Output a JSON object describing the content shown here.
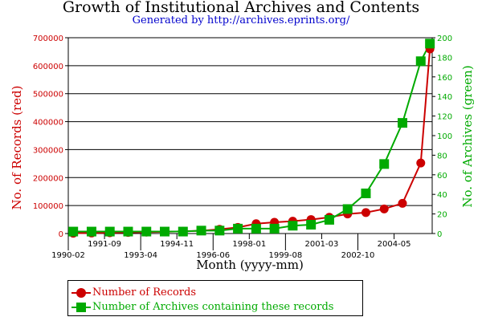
{
  "chart_data": {
    "type": "line",
    "title": "Growth of Institutional Archives and Contents",
    "subtitle": "Generated by http://archives.eprints.org/",
    "xlabel": "Month (yyyy-mm)",
    "x_ticks": [
      "1990-02",
      "1991-09",
      "1993-04",
      "1994-11",
      "1996-06",
      "1998-01",
      "1999-08",
      "2001-03",
      "2002-10",
      "2004-05"
    ],
    "x_tick_values": [
      1990.083,
      1991.667,
      1993.25,
      1994.833,
      1996.417,
      1998.0,
      1999.583,
      2001.167,
      2002.75,
      2004.333
    ],
    "xlim": [
      1990.083,
      2006.0
    ],
    "y_left": {
      "label": "No. of Records (red)",
      "ticks": [
        "0",
        "100000",
        "200000",
        "300000",
        "400000",
        "500000",
        "600000",
        "700000"
      ],
      "tick_values": [
        0,
        100000,
        200000,
        300000,
        400000,
        500000,
        600000,
        700000
      ],
      "lim": [
        0,
        700000
      ]
    },
    "y_right": {
      "label": "No. of Archives (green)",
      "ticks": [
        "0",
        "20",
        "40",
        "60",
        "80",
        "100",
        "120",
        "140",
        "160",
        "180",
        "200"
      ],
      "tick_values": [
        0,
        20,
        40,
        60,
        80,
        100,
        120,
        140,
        160,
        180,
        200
      ],
      "lim": [
        0,
        200
      ]
    },
    "grid": true,
    "legend_position": "bottom",
    "series": [
      {
        "name": "Number of Records",
        "axis": "left",
        "color": "#cc0000",
        "marker": "circle",
        "x": [
          1990.3,
          1991.1,
          1991.9,
          1992.7,
          1993.5,
          1994.3,
          1995.1,
          1995.9,
          1996.7,
          1997.5,
          1998.3,
          1999.1,
          1999.9,
          2000.7,
          2001.5,
          2002.3,
          2003.1,
          2003.9,
          2004.7,
          2005.5,
          2005.9
        ],
        "y": [
          1000,
          2000,
          3000,
          4000,
          5000,
          6000,
          8000,
          10000,
          15000,
          22000,
          35000,
          40000,
          44000,
          50000,
          58000,
          70000,
          75000,
          88000,
          108000,
          252000,
          660000
        ]
      },
      {
        "name": "Number of Archives containing these records",
        "axis": "right",
        "color": "#00aa00",
        "marker": "square",
        "x": [
          1990.3,
          1991.1,
          1991.9,
          1992.7,
          1993.5,
          1994.3,
          1995.1,
          1995.9,
          1996.7,
          1997.5,
          1998.3,
          1999.1,
          1999.9,
          2000.7,
          2001.5,
          2002.3,
          2003.1,
          2003.9,
          2004.7,
          2005.5,
          2005.9
        ],
        "y": [
          2,
          2,
          2,
          2,
          2,
          2,
          2,
          3,
          3,
          5,
          5,
          5,
          8,
          9,
          14,
          25,
          41,
          71,
          113,
          176,
          194
        ]
      }
    ]
  }
}
